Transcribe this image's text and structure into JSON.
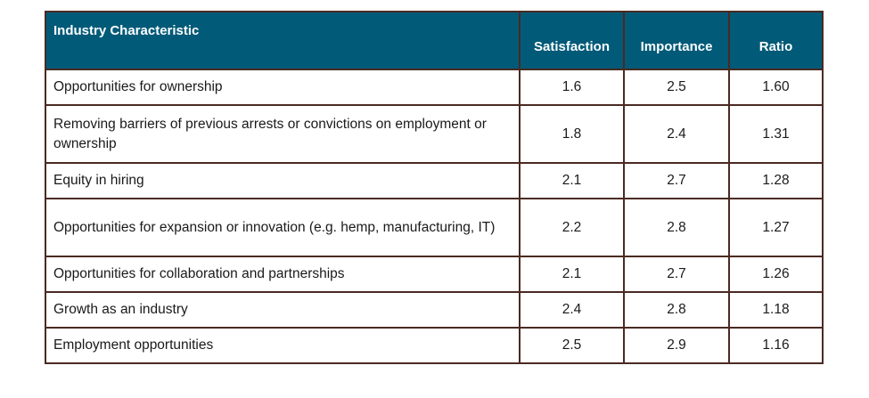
{
  "table": {
    "headers": {
      "characteristic": "Industry Characteristic",
      "satisfaction": "Satisfaction",
      "importance": "Importance",
      "ratio": "Ratio"
    },
    "rows": [
      {
        "characteristic": "Opportunities for ownership",
        "satisfaction": "1.6",
        "importance": "2.5",
        "ratio": "1.60"
      },
      {
        "characteristic": "Removing barriers of previous arrests or convictions on employment or ownership",
        "satisfaction": "1.8",
        "importance": "2.4",
        "ratio": "1.31"
      },
      {
        "characteristic": "Equity in hiring",
        "satisfaction": "2.1",
        "importance": "2.7",
        "ratio": "1.28"
      },
      {
        "characteristic": "Opportunities for expansion or innovation (e.g. hemp, manufacturing, IT)",
        "satisfaction": "2.2",
        "importance": "2.8",
        "ratio": "1.27"
      },
      {
        "characteristic": "Opportunities for collaboration and partnerships",
        "satisfaction": "2.1",
        "importance": "2.7",
        "ratio": "1.26"
      },
      {
        "characteristic": "Growth as an industry",
        "satisfaction": "2.4",
        "importance": "2.8",
        "ratio": "1.18"
      },
      {
        "characteristic": "Employment opportunities",
        "satisfaction": "2.5",
        "importance": "2.9",
        "ratio": "1.16"
      }
    ]
  },
  "colors": {
    "header_bg": "#005a78",
    "header_text": "#ffffff",
    "border": "#4a2a22"
  }
}
